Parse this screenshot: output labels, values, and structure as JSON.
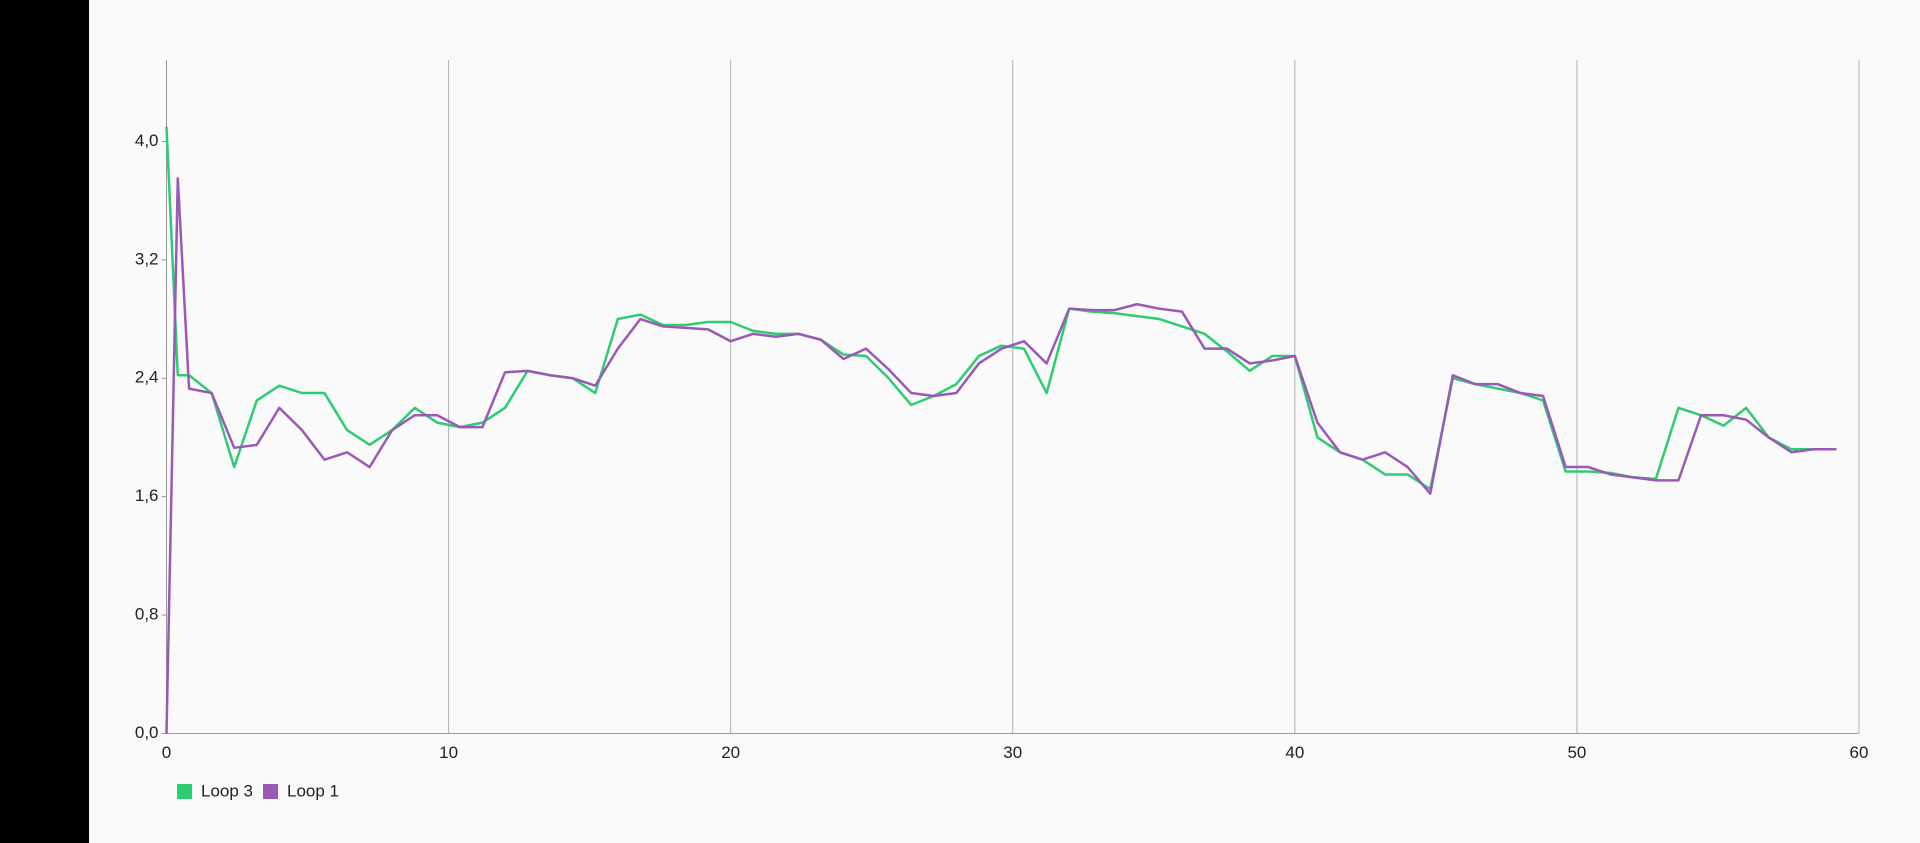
{
  "chart_data": {
    "type": "line",
    "x": [
      0,
      0.4,
      0.8,
      1.6,
      2.4,
      3.2,
      4.0,
      4.8,
      5.6,
      6.4,
      7.2,
      8.0,
      8.8,
      9.6,
      10.4,
      11.2,
      12.0,
      12.8,
      13.6,
      14.4,
      15.2,
      16.0,
      16.8,
      17.6,
      18.4,
      19.2,
      20.0,
      20.8,
      21.6,
      22.4,
      23.2,
      24.0,
      24.8,
      25.6,
      26.4,
      27.2,
      28.0,
      28.8,
      29.6,
      30.4,
      31.2,
      32.0,
      32.8,
      33.6,
      34.4,
      35.2,
      36.0,
      36.8,
      37.6,
      38.4,
      39.2,
      40.0,
      40.8,
      41.6,
      42.4,
      43.2,
      44.0,
      44.8,
      45.6,
      46.4,
      47.2,
      48.0,
      48.8,
      49.6,
      50.4,
      51.2,
      52.0,
      52.8,
      53.6,
      54.4,
      55.2,
      56.0,
      56.8,
      57.6,
      58.4,
      59.2
    ],
    "series": [
      {
        "name": "Loop 3",
        "color": "#2ecc71",
        "values": [
          4.1,
          2.42,
          2.42,
          2.3,
          1.8,
          2.25,
          2.35,
          2.3,
          2.3,
          2.05,
          1.95,
          2.05,
          2.2,
          2.1,
          2.07,
          2.1,
          2.2,
          2.45,
          2.42,
          2.4,
          2.3,
          2.8,
          2.83,
          2.76,
          2.76,
          2.78,
          2.78,
          2.72,
          2.7,
          2.7,
          2.66,
          2.56,
          2.55,
          2.4,
          2.22,
          2.28,
          2.36,
          2.55,
          2.62,
          2.6,
          2.3,
          2.87,
          2.85,
          2.84,
          2.82,
          2.8,
          2.75,
          2.7,
          2.58,
          2.45,
          2.55,
          2.55,
          2.0,
          1.9,
          1.85,
          1.75,
          1.75,
          1.65,
          2.4,
          2.36,
          2.33,
          2.3,
          2.25,
          1.77,
          1.77,
          1.76,
          1.73,
          1.72,
          2.2,
          2.15,
          2.08,
          2.2,
          2.0,
          1.92,
          1.92,
          1.92
        ]
      },
      {
        "name": "Loop 1",
        "color": "#9b59b6",
        "values": [
          0,
          3.75,
          2.33,
          2.3,
          1.93,
          1.95,
          2.2,
          2.05,
          1.85,
          1.9,
          1.8,
          2.05,
          2.15,
          2.15,
          2.07,
          2.07,
          2.44,
          2.45,
          2.42,
          2.4,
          2.35,
          2.6,
          2.8,
          2.75,
          2.74,
          2.73,
          2.65,
          2.7,
          2.68,
          2.7,
          2.66,
          2.53,
          2.6,
          2.46,
          2.3,
          2.28,
          2.3,
          2.5,
          2.6,
          2.65,
          2.5,
          2.87,
          2.86,
          2.86,
          2.9,
          2.87,
          2.85,
          2.6,
          2.6,
          2.5,
          2.52,
          2.55,
          2.1,
          1.9,
          1.85,
          1.9,
          1.8,
          1.62,
          2.42,
          2.36,
          2.36,
          2.3,
          2.28,
          1.8,
          1.8,
          1.75,
          1.73,
          1.71,
          1.71,
          2.15,
          2.15,
          2.12,
          2.0,
          1.9,
          1.92,
          1.92
        ]
      }
    ],
    "xlim": [
      0,
      60
    ],
    "xticks": [
      0,
      10,
      20,
      30,
      40,
      50,
      60
    ],
    "ylim": [
      0,
      4.55
    ],
    "yticks": [
      {
        "value": 0,
        "label": "0,0"
      },
      {
        "value": 0.8,
        "label": "0,8"
      },
      {
        "value": 1.6,
        "label": "1,6"
      },
      {
        "value": 2.4,
        "label": "2,4"
      },
      {
        "value": 3.2,
        "label": "3,2"
      },
      {
        "value": 4.0,
        "label": "4,0"
      }
    ],
    "grid": true,
    "legend": "bottom-left"
  }
}
